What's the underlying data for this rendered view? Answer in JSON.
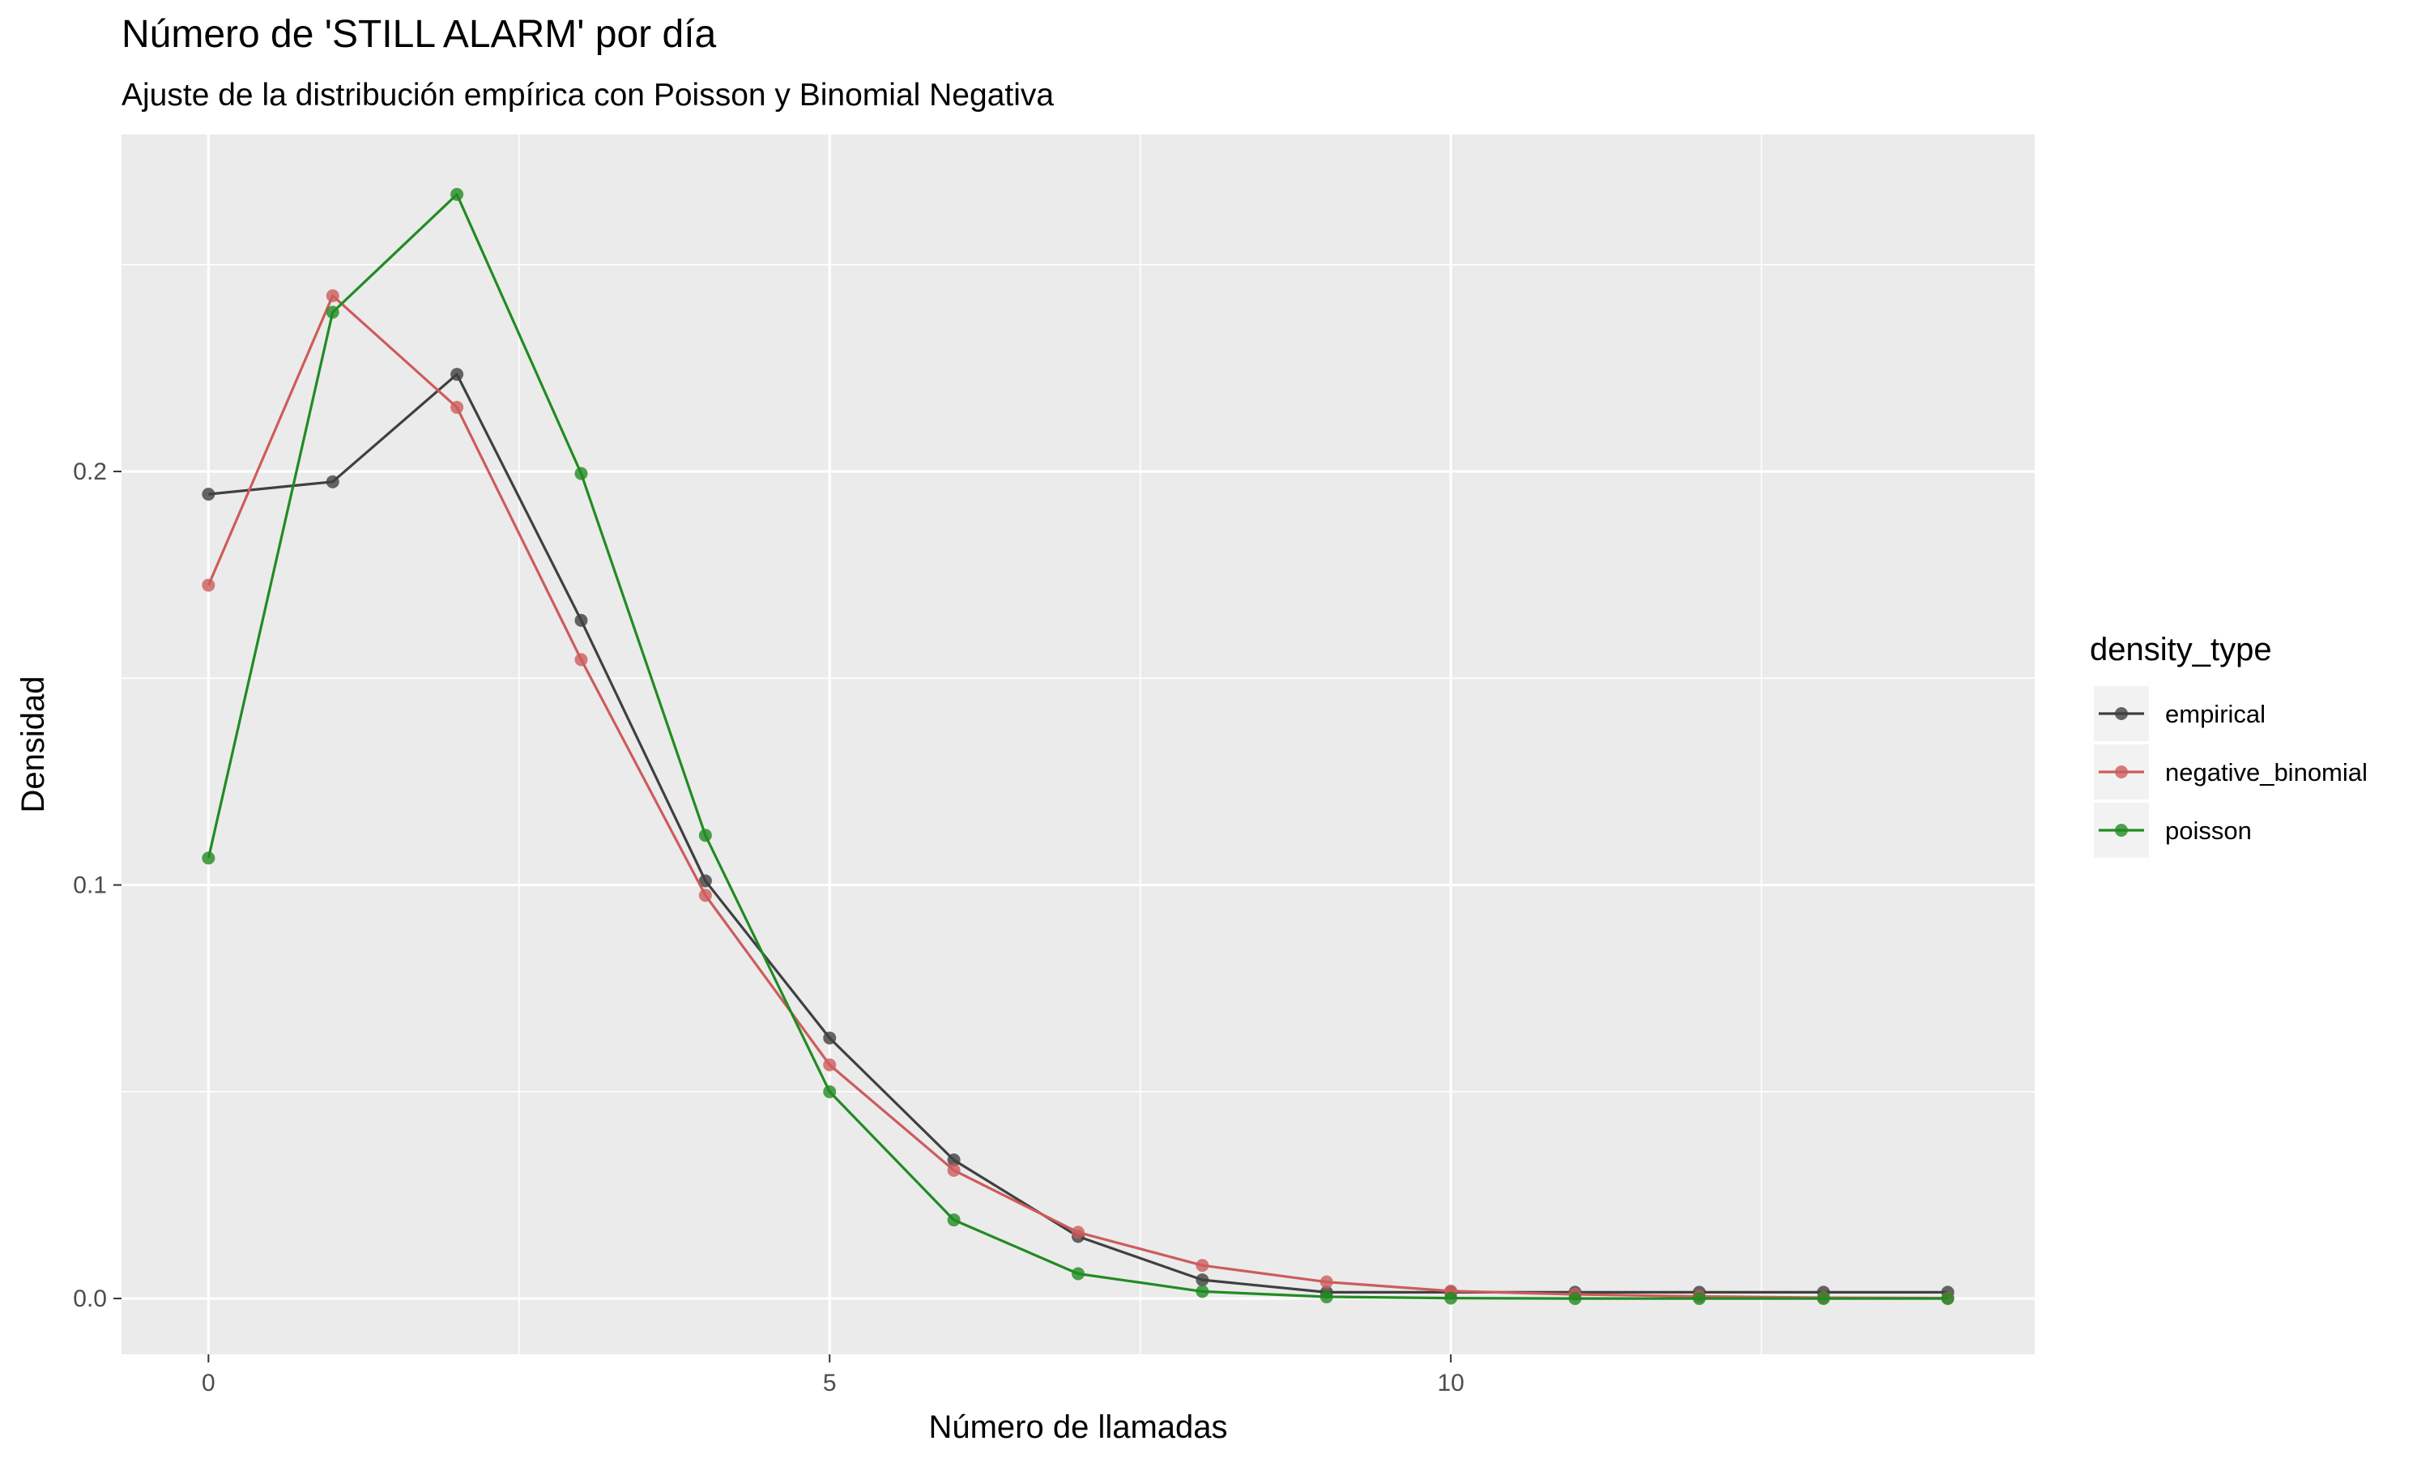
{
  "chart_data": {
    "type": "line",
    "title": "Número de 'STILL ALARM' por día",
    "subtitle": "Ajuste de la distribución empírica con Poisson y Binomial Negativa",
    "xlabel": "Número de llamadas",
    "ylabel": "Densidad",
    "xlim": [
      -0.7,
      14.7
    ],
    "ylim": [
      -0.0135,
      0.2815
    ],
    "x_ticks": [
      0,
      5,
      10
    ],
    "x_tick_labels": [
      "0",
      "5",
      "10"
    ],
    "x_minor_ticks": [
      2.5,
      7.5,
      12.5
    ],
    "y_ticks": [
      0.0,
      0.1,
      0.2
    ],
    "y_tick_labels": [
      "0.0",
      "0.1",
      "0.2"
    ],
    "y_minor_ticks": [
      0.05,
      0.15,
      0.25
    ],
    "grid": true,
    "legend": {
      "title": "density_type",
      "position": "right"
    },
    "x": [
      0,
      1,
      2,
      3,
      4,
      5,
      6,
      7,
      8,
      9,
      10,
      11,
      12,
      13,
      14
    ],
    "series": [
      {
        "name": "empirical",
        "color": "#404040",
        "values": [
          0.1945,
          0.1975,
          0.2235,
          0.164,
          0.101,
          0.063,
          0.0335,
          0.015,
          0.0045,
          0.0015,
          0.0015,
          0.0015,
          0.0015,
          0.0015,
          0.0015
        ]
      },
      {
        "name": "negative_binomial",
        "color": "#cd5c5c",
        "values": [
          0.1725,
          0.2425,
          0.2155,
          0.1545,
          0.0975,
          0.0565,
          0.031,
          0.016,
          0.008,
          0.004,
          0.0018,
          0.001,
          0.0005,
          0.0002,
          0.0001
        ]
      },
      {
        "name": "poisson",
        "color": "#228b22",
        "values": [
          0.1065,
          0.2385,
          0.267,
          0.1995,
          0.112,
          0.05,
          0.019,
          0.006,
          0.0017,
          0.0004,
          0.0001,
          0.0,
          0.0,
          0.0,
          0.0
        ]
      }
    ]
  }
}
